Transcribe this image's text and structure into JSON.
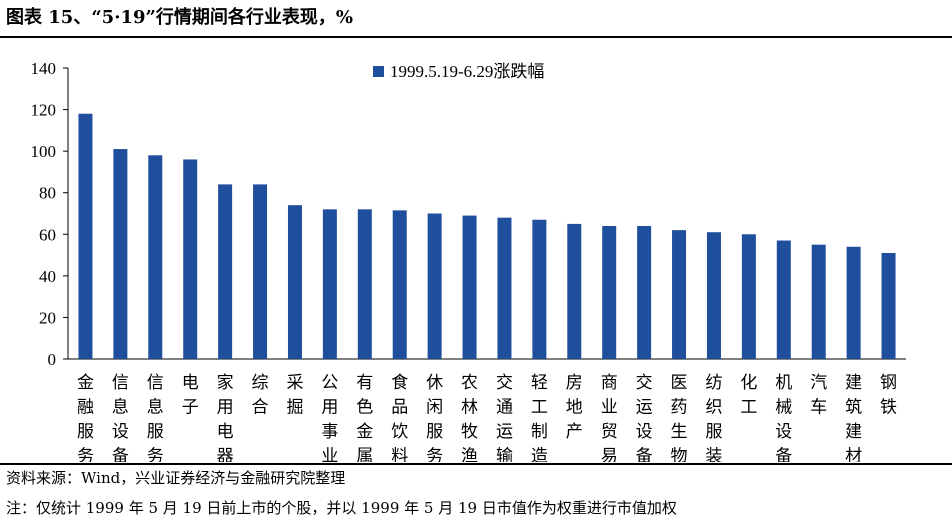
{
  "title": "图表 15、“5·19”行情期间各行业表现，%",
  "source": "资料来源：Wind，兴业证券经济与金融研究院整理",
  "note": "注：仅统计 1999 年 5 月 19 日前上市的个股，并以 1999 年 5 月 19 日市值作为权重进行市值加权",
  "chart_data": {
    "type": "bar",
    "title": "",
    "xlabel": "",
    "ylabel": "",
    "ylim": [
      0,
      140
    ],
    "yticks": [
      0,
      20,
      40,
      60,
      80,
      100,
      120,
      140
    ],
    "grid": false,
    "legend_position": "top-center",
    "bar_color": "#1F4E9C",
    "categories": [
      "金融服务",
      "信息设备",
      "信息服务",
      "电子",
      "家用电器",
      "综合",
      "采掘",
      "公用事业",
      "有色金属",
      "食品饮料",
      "休闲服务",
      "农林牧渔",
      "交通运输",
      "轻工制造",
      "房地产",
      "商业贸易",
      "交运设备",
      "医药生物",
      "纺织服装",
      "化工",
      "机械设备",
      "汽车",
      "建筑建材",
      "钢铁"
    ],
    "series": [
      {
        "name": "1999.5.19-6.29涨跌幅",
        "values": [
          118,
          101,
          98,
          96,
          84,
          84,
          74,
          72,
          72,
          71.5,
          70,
          69,
          68,
          67,
          65,
          64,
          64,
          62,
          61,
          60,
          57,
          55,
          54,
          51
        ]
      }
    ]
  }
}
